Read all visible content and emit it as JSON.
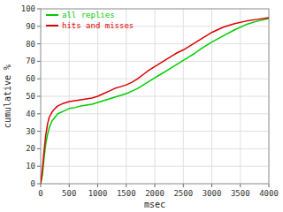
{
  "chart_data": {
    "type": "line",
    "xlabel": "msec",
    "ylabel": "cumulative %",
    "xlim": [
      0,
      4000
    ],
    "ylim": [
      0,
      100
    ],
    "xticks": [
      0,
      500,
      1000,
      1500,
      2000,
      2500,
      3000,
      3500,
      4000
    ],
    "yticks": [
      0,
      10,
      20,
      30,
      40,
      50,
      60,
      70,
      80,
      90,
      100
    ],
    "grid": true,
    "legend": "upper left",
    "x": [
      0,
      30,
      60,
      90,
      120,
      150,
      200,
      250,
      300,
      400,
      500,
      600,
      700,
      800,
      900,
      1000,
      1100,
      1200,
      1300,
      1400,
      1500,
      1600,
      1700,
      1800,
      1900,
      2000,
      2100,
      2200,
      2300,
      2400,
      2500,
      2600,
      2700,
      2800,
      2900,
      3000,
      3200,
      3400,
      3600,
      3800,
      4000
    ],
    "series": [
      {
        "name": "all replies",
        "color": "#00cc00",
        "values": [
          0,
          5,
          15,
          23,
          28,
          32,
          36,
          38,
          40,
          41.5,
          43,
          43.5,
          44.5,
          45,
          45.5,
          46.5,
          47.5,
          48.5,
          49.5,
          50.5,
          51.5,
          53,
          54.5,
          56.5,
          58.5,
          60.5,
          62.5,
          64.5,
          66.5,
          68.5,
          70.5,
          72.5,
          74.5,
          77,
          79,
          81,
          84.5,
          88,
          91,
          93,
          94.5
        ]
      },
      {
        "name": "hits and misses",
        "color": "#dd0000",
        "values": [
          0,
          8,
          19,
          28,
          34,
          38,
          41,
          43,
          44.5,
          46,
          47,
          47.5,
          48,
          48.5,
          49,
          50,
          51.5,
          53,
          54.5,
          55.5,
          56.5,
          58,
          60,
          62.5,
          65,
          67,
          69,
          71,
          73,
          75,
          76.5,
          78.5,
          80.5,
          82.5,
          84.5,
          86.5,
          89.5,
          91.5,
          93,
          94,
          95
        ]
      }
    ]
  }
}
